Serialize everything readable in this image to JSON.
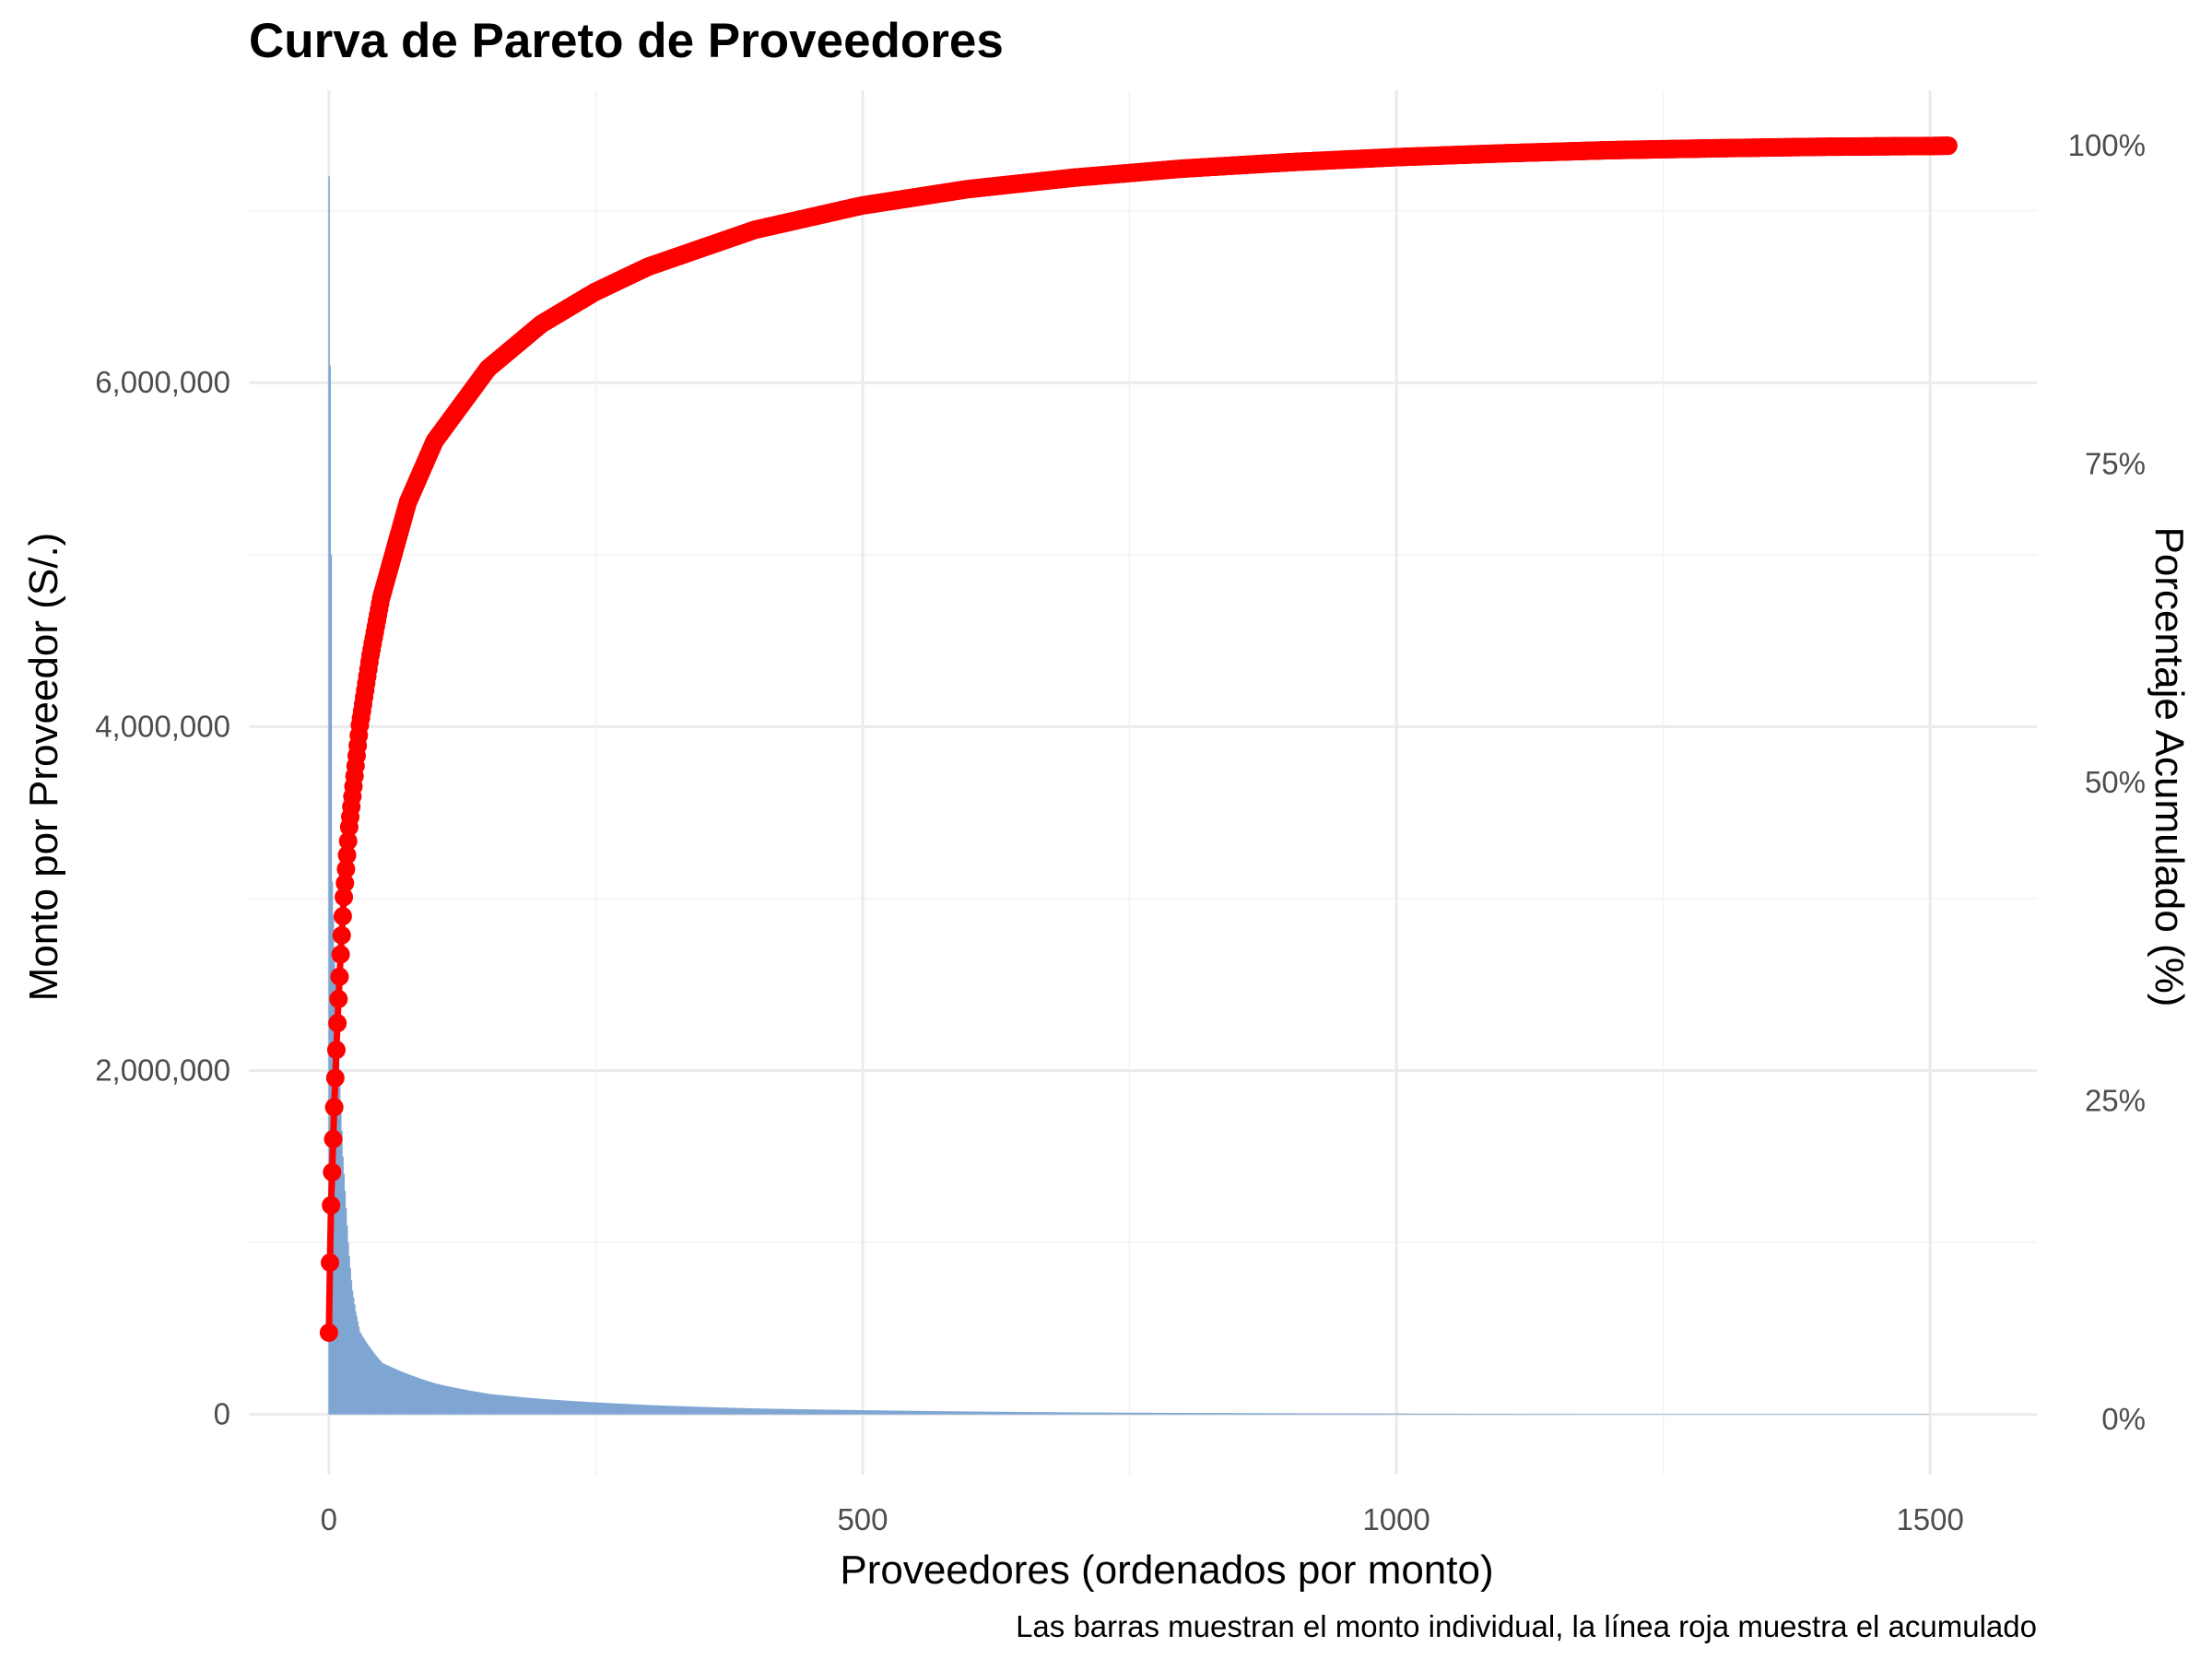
{
  "chart_data": {
    "type": "bar",
    "title": "Curva de Pareto de Proveedores",
    "xlabel": "Proveedores (ordenados por monto)",
    "ylabel": "Monto por Proveedor (S/.)",
    "y2label": "Porcentaje Acumulado (%)",
    "caption": "Las barras muestran el monto individual, la línea roja muestra el acumulado",
    "x_ticks": [
      "0",
      "500",
      "1000",
      "1500"
    ],
    "x_tick_values": [
      0,
      500,
      1000,
      1500
    ],
    "xlim": [
      -75,
      1600
    ],
    "y_ticks": [
      "0",
      "2,000,000",
      "4,000,000",
      "6,000,000"
    ],
    "y_tick_values": [
      0,
      2000000,
      4000000,
      6000000
    ],
    "ylim": [
      -350000,
      7700000
    ],
    "y2_ticks": [
      "0%",
      "25%",
      "50%",
      "75%",
      "100%"
    ],
    "y2_tick_values": [
      0,
      25,
      50,
      75,
      100
    ],
    "y2lim": [
      -4.35,
      104.35
    ],
    "colors": {
      "bars": "#7fa6d3",
      "line": "#ff0000",
      "grid": "#ebebeb"
    },
    "bar_series": {
      "name": "Monto individual",
      "n_suppliers": 1500,
      "top_values": [
        7200000,
        6100000,
        5000000,
        3100000,
        2900000,
        2700000,
        2550000,
        2400000,
        2250000,
        2100000,
        1950000,
        1800000,
        1650000,
        1500000,
        1400000,
        1300000,
        1200000,
        1100000,
        1000000,
        920000,
        850000,
        780000,
        720000,
        680000,
        640000,
        600000,
        570000,
        540000,
        510000,
        480000
      ],
      "tail_samples": [
        {
          "rank": 30,
          "value": 470000
        },
        {
          "rank": 50,
          "value": 300000
        },
        {
          "rank": 100,
          "value": 180000
        },
        {
          "rank": 150,
          "value": 120000
        },
        {
          "rank": 200,
          "value": 90000
        },
        {
          "rank": 300,
          "value": 55000
        },
        {
          "rank": 400,
          "value": 35000
        },
        {
          "rank": 500,
          "value": 25000
        },
        {
          "rank": 700,
          "value": 12000
        },
        {
          "rank": 1000,
          "value": 5000
        },
        {
          "rank": 1300,
          "value": 1500
        },
        {
          "rank": 1500,
          "value": 300
        }
      ]
    },
    "cumulative_series": {
      "name": "Porcentaje acumulado",
      "x": [
        1,
        2,
        3,
        4,
        5,
        6,
        7,
        8,
        9,
        10,
        12,
        15,
        20,
        30,
        40,
        50,
        75,
        100,
        150,
        200,
        250,
        300,
        400,
        500,
        600,
        700,
        800,
        900,
        1000,
        1100,
        1200,
        1300,
        1400,
        1500,
        1518
      ],
      "y": [
        6.8,
        12.3,
        16.8,
        19.4,
        22.0,
        24.5,
        26.8,
        29.0,
        31.1,
        33.0,
        36.5,
        41.0,
        46.5,
        54.5,
        60.0,
        64.5,
        72.0,
        76.8,
        82.5,
        86.0,
        88.5,
        90.5,
        93.4,
        95.3,
        96.6,
        97.5,
        98.2,
        98.7,
        99.1,
        99.4,
        99.65,
        99.8,
        99.92,
        99.98,
        100.0
      ]
    }
  }
}
